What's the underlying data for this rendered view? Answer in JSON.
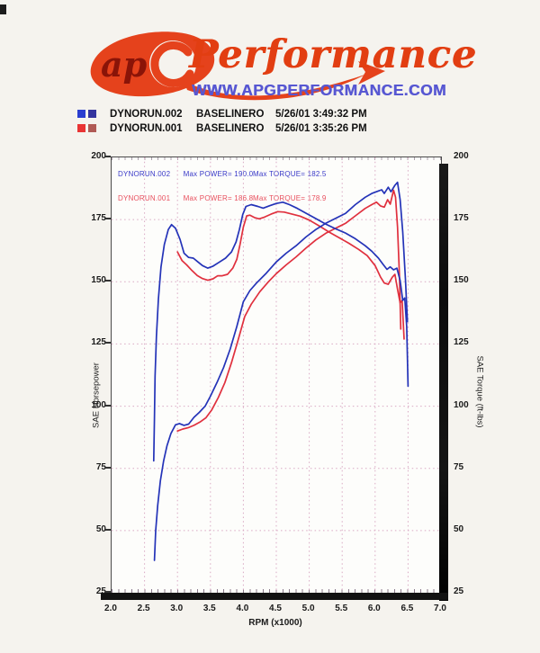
{
  "header": {
    "logo_ap": "ap",
    "logo_word": "Performance",
    "url": "WWW.APGPERFORMANCE.COM",
    "brand_orange": "#e23e12",
    "url_blue": "#5757d2"
  },
  "runs": [
    {
      "file": "DYNORUN.002",
      "name": "BASELINERO",
      "datetime": "5/26/01 3:49:32 PM",
      "swatch1": "#2a3ed0",
      "swatch2": "#34349e",
      "text_color": "#3a3ac8",
      "max_power_label": "Max POWER= 190.0",
      "max_torque_label": "Max TORQUE= 182.5"
    },
    {
      "file": "DYNORUN.001",
      "name": "BASELINERO",
      "datetime": "5/26/01 3:35:26 PM",
      "swatch1": "#e93434",
      "swatch2": "#b05a55",
      "text_color": "#e8505e",
      "max_power_label": "Max POWER= 186.8",
      "max_torque_label": "Max TORQUE= 178.9"
    }
  ],
  "chart_data": {
    "type": "line",
    "xlabel": "RPM (x1000)",
    "ylabel_left": "SAE Horsepower",
    "ylabel_right": "SAE Torque (ft-lbs)",
    "xlim": [
      2.0,
      7.0
    ],
    "ylim": [
      25,
      200
    ],
    "x_ticks": [
      2.0,
      2.5,
      3.0,
      3.5,
      4.0,
      4.5,
      5.0,
      5.5,
      6.0,
      6.5,
      7.0
    ],
    "x_tick_labels": [
      "2.0",
      "2.5",
      "3.0",
      "3.5",
      "4.0",
      "4.5",
      "5.0",
      "5.5",
      "6.0",
      "6.5",
      "7.0"
    ],
    "y_ticks": [
      25,
      50,
      75,
      100,
      125,
      150,
      175,
      200
    ],
    "y_tick_labels": [
      "25",
      "50",
      "75",
      "100",
      "125",
      "150",
      "175",
      "200"
    ],
    "grid": "dotted pink, majors only",
    "legend_position": "above plot + annotations inside top-left",
    "grid_color": "#d9a9c4",
    "series": [
      {
        "name": "DYNORUN.002 SAE Horsepower",
        "axis": "left",
        "color": "#2433b8",
        "points": [
          [
            2.65,
            38
          ],
          [
            2.67,
            50
          ],
          [
            2.7,
            60
          ],
          [
            2.74,
            70
          ],
          [
            2.79,
            78
          ],
          [
            2.84,
            84
          ],
          [
            2.9,
            89
          ],
          [
            2.97,
            92.5
          ],
          [
            3.03,
            93
          ],
          [
            3.1,
            92.3
          ],
          [
            3.17,
            92.8
          ],
          [
            3.25,
            95.5
          ],
          [
            3.33,
            97.5
          ],
          [
            3.42,
            100
          ],
          [
            3.5,
            104
          ],
          [
            3.6,
            109.5
          ],
          [
            3.7,
            115.5
          ],
          [
            3.8,
            123
          ],
          [
            3.9,
            132
          ],
          [
            4.0,
            142
          ],
          [
            4.1,
            146.5
          ],
          [
            4.2,
            149.5
          ],
          [
            4.35,
            153.5
          ],
          [
            4.5,
            158
          ],
          [
            4.65,
            161.5
          ],
          [
            4.8,
            164.5
          ],
          [
            4.95,
            168
          ],
          [
            5.1,
            171
          ],
          [
            5.25,
            173.5
          ],
          [
            5.4,
            175.5
          ],
          [
            5.55,
            177.5
          ],
          [
            5.7,
            181
          ],
          [
            5.85,
            184
          ],
          [
            5.95,
            185.5
          ],
          [
            6.05,
            186.5
          ],
          [
            6.1,
            187
          ],
          [
            6.14,
            185.5
          ],
          [
            6.2,
            188
          ],
          [
            6.24,
            186.2
          ],
          [
            6.3,
            188.8
          ],
          [
            6.34,
            190
          ],
          [
            6.38,
            183
          ],
          [
            6.42,
            170
          ],
          [
            6.46,
            151
          ],
          [
            6.49,
            134
          ]
        ]
      },
      {
        "name": "DYNORUN.002 SAE Torque",
        "axis": "right",
        "color": "#2433b8",
        "points": [
          [
            2.64,
            78
          ],
          [
            2.65,
            95
          ],
          [
            2.66,
            112
          ],
          [
            2.68,
            128
          ],
          [
            2.71,
            143
          ],
          [
            2.75,
            156
          ],
          [
            2.8,
            165
          ],
          [
            2.86,
            171
          ],
          [
            2.91,
            173
          ],
          [
            2.97,
            171.5
          ],
          [
            3.04,
            167
          ],
          [
            3.1,
            161.5
          ],
          [
            3.17,
            159.8
          ],
          [
            3.24,
            159.5
          ],
          [
            3.31,
            158
          ],
          [
            3.38,
            156.5
          ],
          [
            3.46,
            155.5
          ],
          [
            3.54,
            156.3
          ],
          [
            3.63,
            157.8
          ],
          [
            3.73,
            159.5
          ],
          [
            3.82,
            162
          ],
          [
            3.89,
            166
          ],
          [
            3.94,
            171
          ],
          [
            3.99,
            177
          ],
          [
            4.04,
            180.3
          ],
          [
            4.12,
            181
          ],
          [
            4.22,
            180.3
          ],
          [
            4.3,
            179.6
          ],
          [
            4.4,
            180.6
          ],
          [
            4.5,
            181.5
          ],
          [
            4.6,
            182
          ],
          [
            4.7,
            181
          ],
          [
            4.82,
            179.5
          ],
          [
            4.95,
            177.6
          ],
          [
            5.1,
            175.4
          ],
          [
            5.25,
            173.2
          ],
          [
            5.4,
            171.3
          ],
          [
            5.55,
            169.6
          ],
          [
            5.7,
            167.3
          ],
          [
            5.85,
            164.5
          ],
          [
            5.95,
            162.3
          ],
          [
            6.05,
            159.5
          ],
          [
            6.12,
            157
          ],
          [
            6.18,
            155
          ],
          [
            6.23,
            156
          ],
          [
            6.28,
            154.8
          ],
          [
            6.33,
            155.5
          ],
          [
            6.38,
            150.5
          ],
          [
            6.42,
            142.5
          ],
          [
            6.45,
            143.5
          ],
          [
            6.48,
            132
          ],
          [
            6.5,
            108
          ]
        ]
      },
      {
        "name": "DYNORUN.001 SAE Horsepower",
        "axis": "left",
        "color": "#e0303e",
        "points": [
          [
            3.0,
            90
          ],
          [
            3.08,
            90.8
          ],
          [
            3.16,
            91.3
          ],
          [
            3.25,
            92.3
          ],
          [
            3.34,
            93.6
          ],
          [
            3.43,
            95.3
          ],
          [
            3.52,
            98.5
          ],
          [
            3.62,
            103.5
          ],
          [
            3.72,
            109.5
          ],
          [
            3.82,
            117.5
          ],
          [
            3.92,
            126.5
          ],
          [
            4.02,
            136
          ],
          [
            4.12,
            141
          ],
          [
            4.25,
            146
          ],
          [
            4.38,
            150
          ],
          [
            4.5,
            153.3
          ],
          [
            4.65,
            156.8
          ],
          [
            4.8,
            160
          ],
          [
            4.95,
            163.5
          ],
          [
            5.1,
            166.8
          ],
          [
            5.25,
            169.5
          ],
          [
            5.4,
            171.5
          ],
          [
            5.55,
            173.5
          ],
          [
            5.7,
            176.5
          ],
          [
            5.85,
            179.5
          ],
          [
            5.95,
            181
          ],
          [
            6.02,
            182
          ],
          [
            6.08,
            180.5
          ],
          [
            6.14,
            180
          ],
          [
            6.19,
            183
          ],
          [
            6.23,
            181.2
          ],
          [
            6.28,
            186.8
          ],
          [
            6.31,
            184
          ],
          [
            6.34,
            172
          ],
          [
            6.37,
            152
          ],
          [
            6.39,
            131
          ]
        ]
      },
      {
        "name": "DYNORUN.001 SAE Torque",
        "axis": "right",
        "color": "#e0303e",
        "points": [
          [
            3.0,
            162
          ],
          [
            3.07,
            158.5
          ],
          [
            3.14,
            156.8
          ],
          [
            3.22,
            154.5
          ],
          [
            3.3,
            152.5
          ],
          [
            3.38,
            151.3
          ],
          [
            3.46,
            150.6
          ],
          [
            3.54,
            151.2
          ],
          [
            3.61,
            152.4
          ],
          [
            3.68,
            152.4
          ],
          [
            3.76,
            153
          ],
          [
            3.84,
            155.5
          ],
          [
            3.9,
            159
          ],
          [
            3.95,
            165
          ],
          [
            4.0,
            172
          ],
          [
            4.05,
            176.5
          ],
          [
            4.1,
            176.8
          ],
          [
            4.17,
            175.8
          ],
          [
            4.24,
            175.3
          ],
          [
            4.32,
            176
          ],
          [
            4.42,
            177.2
          ],
          [
            4.52,
            178.2
          ],
          [
            4.62,
            178
          ],
          [
            4.74,
            177.2
          ],
          [
            4.86,
            176.4
          ],
          [
            5.0,
            174.8
          ],
          [
            5.15,
            172.5
          ],
          [
            5.3,
            170
          ],
          [
            5.45,
            167.8
          ],
          [
            5.6,
            165.5
          ],
          [
            5.75,
            163
          ],
          [
            5.88,
            160.5
          ],
          [
            6.0,
            156.5
          ],
          [
            6.08,
            152
          ],
          [
            6.14,
            149.5
          ],
          [
            6.2,
            149
          ],
          [
            6.26,
            151.8
          ],
          [
            6.3,
            153
          ],
          [
            6.34,
            147
          ],
          [
            6.38,
            141.5
          ],
          [
            6.41,
            142.5
          ],
          [
            6.44,
            127
          ]
        ]
      }
    ]
  }
}
